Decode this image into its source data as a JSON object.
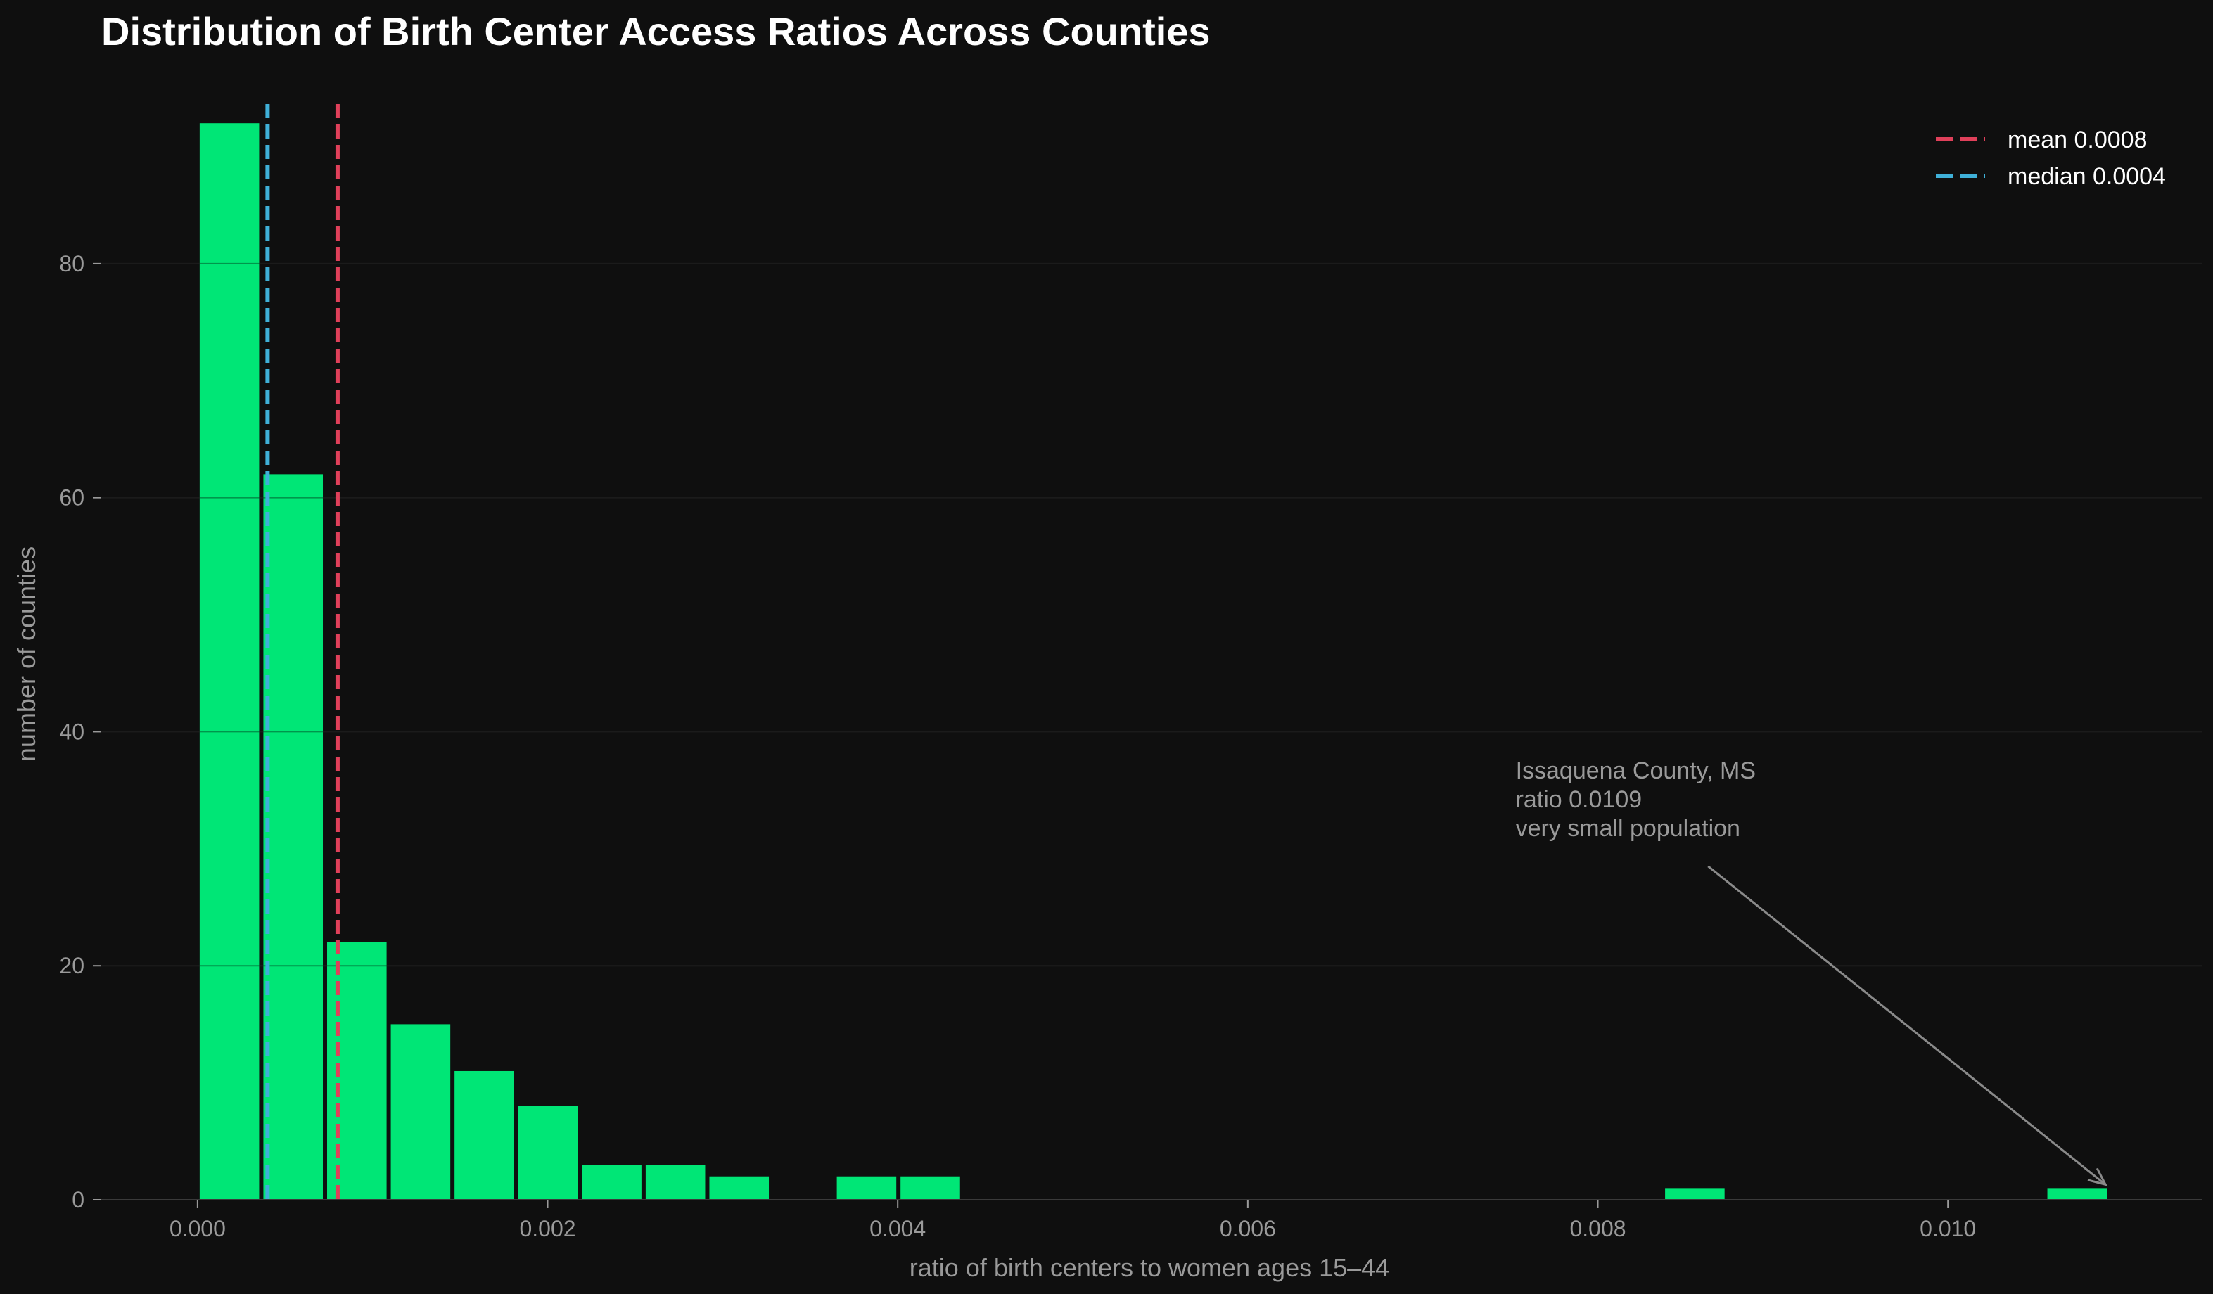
{
  "chart_data": {
    "type": "bar",
    "title": "Distribution of Birth Center Access Ratios Across Counties",
    "xlabel": "ratio of birth centers to women ages 15–44",
    "ylabel": "number of counties",
    "xlim": [
      -0.00055,
      0.01145
    ],
    "ylim": [
      0,
      97
    ],
    "x_ticks": [
      0.0,
      0.002,
      0.004,
      0.006,
      0.008,
      0.01
    ],
    "x_tick_labels": [
      "0.000",
      "0.002",
      "0.004",
      "0.006",
      "0.008",
      "0.010"
    ],
    "y_ticks": [
      0,
      20,
      40,
      60,
      80
    ],
    "y_tick_labels": [
      "0",
      "20",
      "40",
      "60",
      "80"
    ],
    "grid": "horizontal",
    "bins": [
      {
        "start": 0.0,
        "end": 0.000364,
        "count": 92
      },
      {
        "start": 0.000364,
        "end": 0.000728,
        "count": 62
      },
      {
        "start": 0.000728,
        "end": 0.001092,
        "count": 22
      },
      {
        "start": 0.001092,
        "end": 0.001456,
        "count": 15
      },
      {
        "start": 0.001456,
        "end": 0.00182,
        "count": 11
      },
      {
        "start": 0.00182,
        "end": 0.002184,
        "count": 8
      },
      {
        "start": 0.002184,
        "end": 0.002548,
        "count": 3
      },
      {
        "start": 0.002548,
        "end": 0.002912,
        "count": 3
      },
      {
        "start": 0.002912,
        "end": 0.003276,
        "count": 2
      },
      {
        "start": 0.003276,
        "end": 0.00364,
        "count": 0
      },
      {
        "start": 0.00364,
        "end": 0.004004,
        "count": 2
      },
      {
        "start": 0.004004,
        "end": 0.004368,
        "count": 2
      },
      {
        "start": 0.008372,
        "end": 0.008736,
        "count": 1
      },
      {
        "start": 0.010556,
        "end": 0.01092,
        "count": 1
      }
    ],
    "reference_lines": [
      {
        "label": "mean",
        "value_text": "0.0008",
        "x": 0.0008,
        "color": "#e0405a"
      },
      {
        "label": "median",
        "value_text": "0.0004",
        "x": 0.0004,
        "color": "#3fb0d8"
      }
    ],
    "legend_position": "top-right",
    "annotation": {
      "lines": [
        "Issaquena County, MS",
        "ratio 0.0109",
        "very small population"
      ],
      "text_x": 0.00753,
      "text_y": 36,
      "arrow_from": [
        0.00863,
        28.5
      ],
      "arrow_to": [
        0.0109,
        1.3
      ]
    },
    "colors": {
      "background": "#0f0f0f",
      "bar": "#00e676",
      "grid": "#2a2a2a",
      "tick": "#9a9a9a",
      "arrow": "#8a8a8a"
    }
  }
}
